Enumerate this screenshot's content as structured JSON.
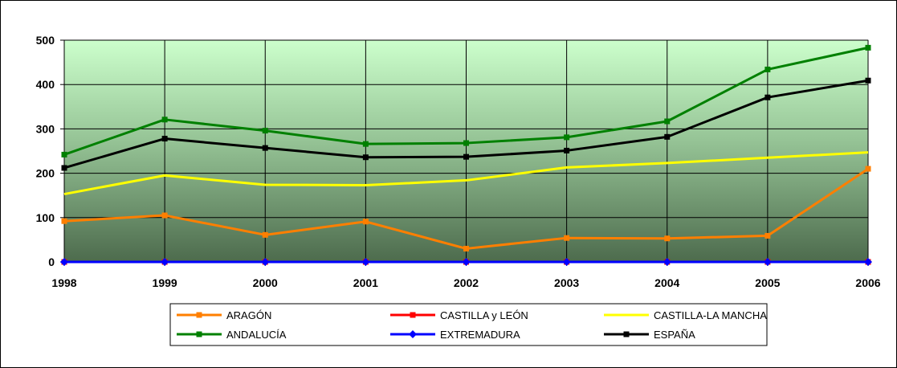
{
  "chart_data": {
    "type": "line",
    "title": "",
    "xlabel": "",
    "ylabel": "",
    "categories": [
      "1998",
      "1999",
      "2000",
      "2001",
      "2002",
      "2003",
      "2004",
      "2005",
      "2006"
    ],
    "ylim": [
      0,
      500
    ],
    "yticks": [
      "0",
      "100",
      "200",
      "300",
      "400",
      "500"
    ],
    "grid": true,
    "background": "gradient light green (top) to dark green (bottom)",
    "legend_position": "bottom",
    "series": [
      {
        "name": "ARAGÓN",
        "color": "#ff7f00",
        "marker": "square",
        "values": [
          92,
          105,
          61,
          91,
          30,
          54,
          53,
          59,
          210
        ]
      },
      {
        "name": "CASTILLA y  LEÓN",
        "color": "#ff0000",
        "marker": "square",
        "values": [
          0,
          0,
          0,
          0,
          0,
          0,
          0,
          0,
          0
        ]
      },
      {
        "name": "CASTILLA-LA MANCHA",
        "color": "#ffff00",
        "marker": "none",
        "values": [
          153,
          195,
          174,
          173,
          184,
          213,
          223,
          235,
          247
        ]
      },
      {
        "name": "ANDALUCÍA",
        "color": "#008000",
        "marker": "square",
        "values": [
          242,
          321,
          296,
          266,
          268,
          281,
          317,
          434,
          483
        ]
      },
      {
        "name": "EXTREMADURA",
        "color": "#0000ff",
        "marker": "diamond",
        "values": [
          0,
          0,
          0,
          0,
          0,
          0,
          0,
          0,
          0
        ]
      },
      {
        "name": "ESPAÑA",
        "color": "#000000",
        "marker": "square",
        "values": [
          212,
          278,
          257,
          236,
          237,
          251,
          282,
          371,
          409
        ]
      }
    ]
  }
}
